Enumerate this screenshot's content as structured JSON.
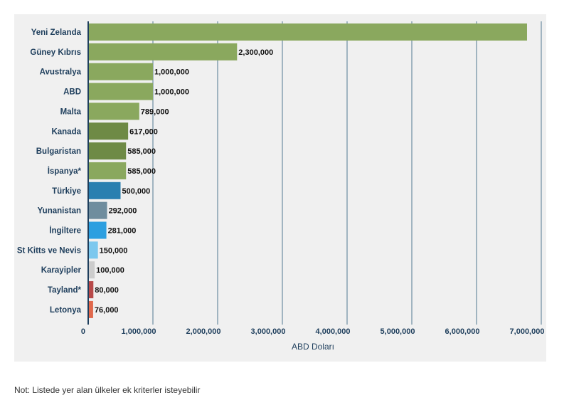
{
  "chart_data": {
    "type": "bar",
    "orientation": "horizontal",
    "categories": [
      "Yeni Zelanda",
      "Güney Kıbrıs",
      "Avustralya",
      "ABD",
      "Malta",
      "Kanada",
      "Bulgaristan",
      "İspanya*",
      "Türkiye",
      "Yunanistan",
      "İngiltere",
      "St Kitts ve Nevis",
      "Karayipler",
      "Tayland*",
      "Letonya"
    ],
    "values": [
      6780000,
      2300000,
      1000000,
      1000000,
      789000,
      617000,
      585000,
      585000,
      500000,
      292000,
      281000,
      150000,
      100000,
      80000,
      76000
    ],
    "value_labels": [
      "",
      "2,300,000",
      "1,000,000",
      "1,000,000",
      "789,000",
      "617,000",
      "585,000",
      "585,000",
      "500,000",
      "292,000",
      "281,000",
      "150,000",
      "100,000",
      "80,000",
      "76,000"
    ],
    "bar_colors": [
      "#8aa85e",
      "#8aa85e",
      "#8aa85e",
      "#8aa85e",
      "#8aa85e",
      "#6e8a45",
      "#6e8a45",
      "#8aa85e",
      "#2a7fb0",
      "#6f8d9e",
      "#2c9fe0",
      "#7cc8ee",
      "#cccccc",
      "#b84a4a",
      "#e0694d"
    ],
    "xlim": [
      0,
      7000000
    ],
    "xticks": [
      "0",
      "1,000,000",
      "2,000,000",
      "3,000,000",
      "4,000,000",
      "5,000,000",
      "6,000,000",
      "7,000,000"
    ],
    "xlabel": "ABD Doları",
    "grid": true
  },
  "footnote": "Not: Listede yer alan ülkeler ek kriterler isteyebilir",
  "colors": {
    "panel_bg": "#f0f0f0",
    "label_text": "#1e3e5c",
    "gridline": "#2a5a7a"
  }
}
